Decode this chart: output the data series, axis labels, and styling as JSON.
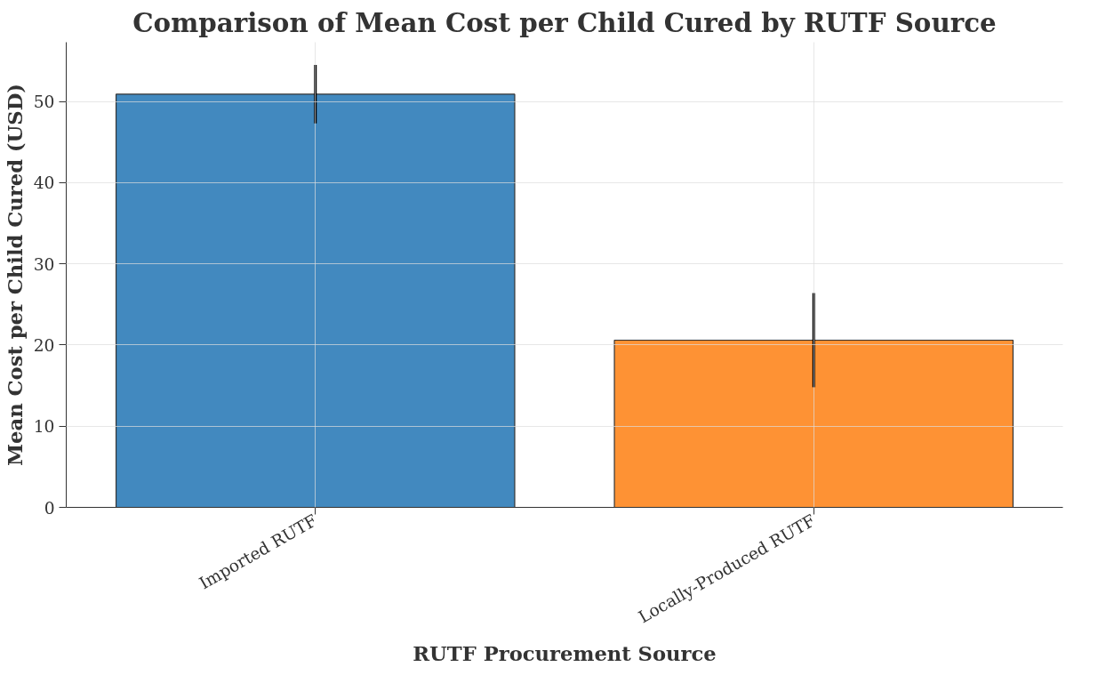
{
  "chart_data": {
    "type": "bar",
    "title": "Comparison of Mean Cost per Child Cured by RUTF Source",
    "xlabel": "RUTF Procurement Source",
    "ylabel": "Mean Cost per Child Cured (USD)",
    "categories": [
      "Imported RUTF",
      "Locally-Produced RUTF"
    ],
    "values": [
      50.9,
      20.6
    ],
    "errors": [
      3.6,
      5.8
    ],
    "colors": [
      "#4289bf",
      "#fe9234"
    ],
    "ylim": [
      0,
      57.3
    ],
    "yticks": [
      0,
      10,
      20,
      30,
      40,
      50
    ],
    "grid": true
  }
}
